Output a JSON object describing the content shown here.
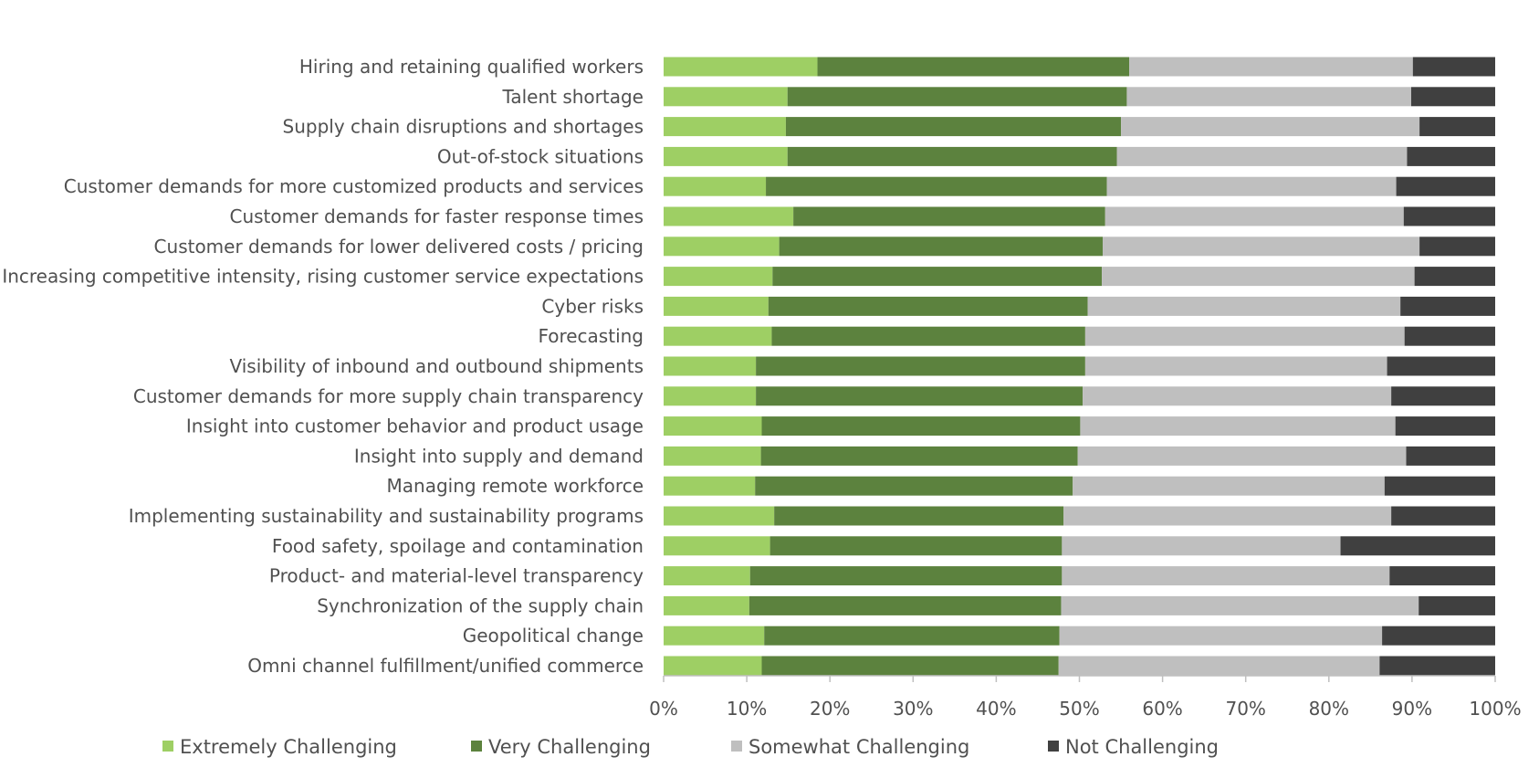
{
  "chart_data": {
    "type": "bar",
    "orientation": "horizontal",
    "stacked": "percent",
    "title": "",
    "xlabel": "",
    "ylabel": "",
    "xlim": [
      0,
      100
    ],
    "grid": false,
    "legend_position": "bottom",
    "tick_labels": [
      "0%",
      "10%",
      "20%",
      "30%",
      "40%",
      "50%",
      "60%",
      "70%",
      "80%",
      "90%",
      "100%"
    ],
    "categories": [
      "Hiring and retaining qualified workers",
      "Talent shortage",
      "Supply chain disruptions and shortages",
      "Out-of-stock situations",
      "Customer demands for more customized products and services",
      "Customer demands for faster response times",
      "Customer demands for lower delivered costs / pricing",
      "Increasing competitive intensity, rising customer service expectations",
      "Cyber risks",
      "Forecasting",
      "Visibility of inbound and outbound shipments",
      "Customer demands for more supply chain transparency",
      "Insight into customer behavior and product usage",
      "Insight into supply and demand",
      "Managing remote workforce",
      "Implementing sustainability and sustainability programs",
      "Food safety, spoilage and contamination",
      "Product- and material-level transparency",
      "Synchronization of the supply chain",
      "Geopolitical change",
      "Omni channel fulfillment/unified commerce"
    ],
    "series": [
      {
        "name": "Extremely Challenging",
        "color": "#9ecf64",
        "values": [
          18.5,
          14.9,
          14.7,
          14.9,
          12.3,
          15.6,
          13.9,
          13.1,
          12.6,
          13.0,
          11.1,
          11.1,
          11.8,
          11.7,
          11.0,
          13.3,
          12.8,
          10.4,
          10.3,
          12.1,
          11.8
        ]
      },
      {
        "name": "Very Challenging",
        "color": "#5c823e",
        "values": [
          37.5,
          40.8,
          40.3,
          39.6,
          41.0,
          37.5,
          38.9,
          39.6,
          38.4,
          37.7,
          39.6,
          39.3,
          38.3,
          38.1,
          38.2,
          34.8,
          35.1,
          37.5,
          37.5,
          35.5,
          35.7
        ]
      },
      {
        "name": "Somewhat Challenging",
        "color": "#bfbfbf",
        "values": [
          34.1,
          34.2,
          35.9,
          34.9,
          34.8,
          35.9,
          38.1,
          37.6,
          37.6,
          38.4,
          36.3,
          37.1,
          37.9,
          39.5,
          37.5,
          39.4,
          33.5,
          39.4,
          43.0,
          38.8,
          38.6
        ]
      },
      {
        "name": "Not Challenging",
        "color": "#404040",
        "values": [
          9.9,
          10.1,
          9.1,
          10.6,
          11.9,
          11.0,
          9.1,
          9.7,
          11.4,
          10.9,
          13.0,
          12.5,
          12.0,
          10.7,
          13.3,
          12.5,
          18.6,
          12.7,
          9.2,
          13.6,
          13.9
        ]
      }
    ]
  }
}
